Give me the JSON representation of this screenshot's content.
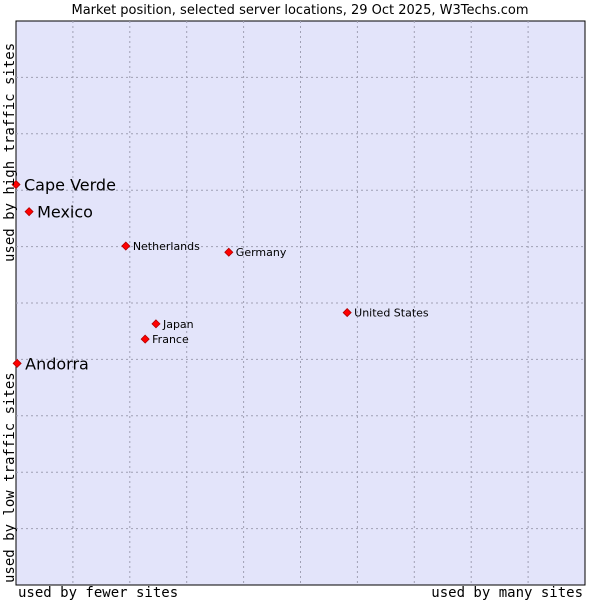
{
  "chart_data": {
    "type": "scatter",
    "title": "Market position, selected server locations, 29 Oct 2025, W3Techs.com",
    "xlabel_low": "used by fewer sites",
    "xlabel_high": "used by many sites",
    "ylabel_low": "used by low traffic sites",
    "ylabel_high": "used by high traffic sites",
    "xlim": [
      0,
      10
    ],
    "ylim": [
      0,
      10
    ],
    "grid": true,
    "points": [
      {
        "label": "Cape Verde",
        "x": 0.0,
        "y": 7.1,
        "emphasis": true
      },
      {
        "label": "Mexico",
        "x": 0.23,
        "y": 6.62,
        "emphasis": true
      },
      {
        "label": "Netherlands",
        "x": 1.93,
        "y": 6.01,
        "emphasis": false
      },
      {
        "label": "Germany",
        "x": 3.74,
        "y": 5.9,
        "emphasis": false
      },
      {
        "label": "United States",
        "x": 5.82,
        "y": 4.83,
        "emphasis": false
      },
      {
        "label": "Japan",
        "x": 2.46,
        "y": 4.63,
        "emphasis": false
      },
      {
        "label": "France",
        "x": 2.27,
        "y": 4.36,
        "emphasis": false
      },
      {
        "label": "Andorra",
        "x": 0.02,
        "y": 3.93,
        "emphasis": true
      }
    ]
  },
  "colors": {
    "plot_background": "#e3e4fa",
    "grid": "#a0a0b4",
    "marker": "#ff0000",
    "marker_outline": "#b00000"
  }
}
